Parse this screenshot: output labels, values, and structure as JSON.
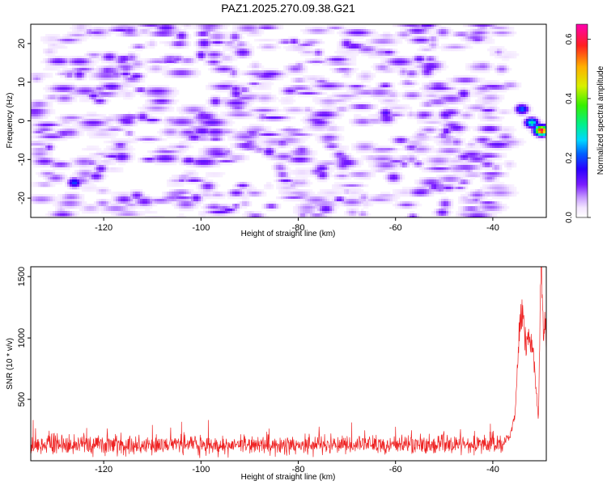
{
  "title": "PAZ1.2025.270.09.38.G21",
  "colors": {
    "snr_line": "#ee2222",
    "spectrogram_scale": [
      "#ffffff",
      "#eadcff",
      "#c49cff",
      "#8a4dff",
      "#5a10e8",
      "#2020ff",
      "#00b4ff",
      "#00e0a0",
      "#30ee30",
      "#d8e800",
      "#ffaa00",
      "#ff3030",
      "#ff00aa"
    ]
  },
  "chart_data": [
    {
      "type": "heatmap",
      "xlabel": "Height of straight line (km)",
      "ylabel": "Frequency (Hz)",
      "xlim": [
        -135,
        -29
      ],
      "ylim": [
        -25,
        25
      ],
      "xticks": [
        -120,
        -100,
        -80,
        -60,
        -40
      ],
      "yticks": [
        -20,
        -10,
        0,
        10,
        20
      ],
      "colorbar": {
        "label": "Normalized spectral amplitude",
        "range": [
          0,
          0.65
        ],
        "ticks": [
          "0.0",
          "0.2",
          "0.4",
          "0.6"
        ],
        "tick_values": [
          0,
          0.2,
          0.4,
          0.6
        ],
        "colormap": "white-purple-blue-cyan-green-yellow-red-magenta"
      },
      "noise_level": 0.05,
      "hot_spots": [
        {
          "x": -32,
          "y": -0.5,
          "value": 0.3
        },
        {
          "x": -30,
          "y": -2.5,
          "value": 0.62
        },
        {
          "x": -34,
          "y": 3,
          "value": 0.22
        },
        {
          "x": -126,
          "y": -16,
          "value": 0.2
        },
        {
          "x": -125,
          "y": 12,
          "value": 0.12
        },
        {
          "x": -101,
          "y": -20,
          "value": 0.12
        },
        {
          "x": -104,
          "y": 22,
          "value": 0.12
        },
        {
          "x": -62,
          "y": 2,
          "value": 0.14
        },
        {
          "x": -86,
          "y": -8,
          "value": 0.13
        },
        {
          "x": -46,
          "y": 7,
          "value": 0.13
        },
        {
          "x": -97,
          "y": 5,
          "value": 0.12
        },
        {
          "x": -70,
          "y": 20,
          "value": 0.12
        },
        {
          "x": -75,
          "y": -14,
          "value": 0.12
        },
        {
          "x": -52,
          "y": -17,
          "value": 0.12
        },
        {
          "x": -112,
          "y": 1,
          "value": 0.12
        }
      ]
    },
    {
      "type": "line",
      "xlabel": "Height of straight line (km)",
      "ylabel": "SNR (10 * v/v)",
      "xlim": [
        -135,
        -29
      ],
      "ylim": [
        0,
        1580
      ],
      "xticks": [
        -120,
        -100,
        -80,
        -60,
        -40
      ],
      "yticks": [
        500,
        1000,
        1500
      ],
      "series": [
        {
          "baseline_mean": 130,
          "baseline_spread": 70,
          "outliers": [
            {
              "x": -134.5,
              "y": 330
            },
            {
              "x": -123.5,
              "y": 265
            },
            {
              "x": -110,
              "y": 290
            },
            {
              "x": -104,
              "y": 315
            },
            {
              "x": -98.5,
              "y": 330
            },
            {
              "x": -86,
              "y": 260
            },
            {
              "x": -69,
              "y": 310
            },
            {
              "x": -60,
              "y": 275
            },
            {
              "x": -40.5,
              "y": 300
            }
          ],
          "rise_profile": [
            {
              "x": -38,
              "y": 150
            },
            {
              "x": -36.5,
              "y": 200
            },
            {
              "x": -35.5,
              "y": 350
            },
            {
              "x": -35,
              "y": 700
            },
            {
              "x": -34.5,
              "y": 1100
            },
            {
              "x": -34,
              "y": 1230
            },
            {
              "x": -33.5,
              "y": 1020
            },
            {
              "x": -33,
              "y": 920
            },
            {
              "x": -32.5,
              "y": 1040
            },
            {
              "x": -32,
              "y": 900
            },
            {
              "x": -31.5,
              "y": 800
            },
            {
              "x": -31,
              "y": 520
            },
            {
              "x": -30.6,
              "y": 350
            },
            {
              "x": -30.2,
              "y": 1450
            },
            {
              "x": -30,
              "y": 1580
            },
            {
              "x": -29.7,
              "y": 1100
            },
            {
              "x": -29.4,
              "y": 1040
            },
            {
              "x": -29.2,
              "y": 1150
            },
            {
              "x": -29,
              "y": 880
            }
          ]
        }
      ]
    }
  ]
}
